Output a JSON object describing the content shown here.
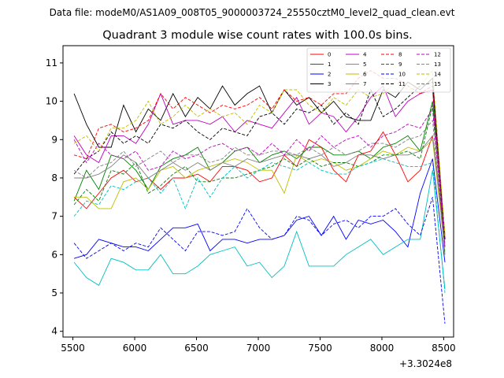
{
  "chart_data": {
    "type": "line",
    "suptitle": "Data file: modeM0/AS1A09_008T05_9000003724_25550cztM0_level2_quad_clean.evt",
    "title": "Quadrant 3 module wise count rates with 100.0s bins.",
    "xlabel": "",
    "ylabel": "",
    "x_offset_label": "+3.3024e8",
    "xlim": [
      5420,
      8580
    ],
    "ylim": [
      3.85,
      11.45
    ],
    "xticks": [
      5500,
      6000,
      6500,
      7000,
      7500,
      8000,
      8500
    ],
    "yticks": [
      4,
      5,
      6,
      7,
      8,
      9,
      10,
      11
    ],
    "x": [
      5510,
      5610,
      5710,
      5810,
      5910,
      6010,
      6110,
      6210,
      6310,
      6410,
      6510,
      6610,
      6710,
      6810,
      6910,
      7010,
      7110,
      7210,
      7310,
      7410,
      7510,
      7610,
      7710,
      7810,
      7910,
      8010,
      8110,
      8210,
      8310,
      8410,
      8510
    ],
    "legend_loc": "upper right",
    "series": [
      {
        "name": "0",
        "color": "#ff0000",
        "dash": "solid",
        "values": [
          7.5,
          7.2,
          7.6,
          8.0,
          8.2,
          7.9,
          8.0,
          7.7,
          8.0,
          8.0,
          8.1,
          7.9,
          8.3,
          8.3,
          8.2,
          7.9,
          8.0,
          8.6,
          8.3,
          9.0,
          8.8,
          8.2,
          7.9,
          8.6,
          8.7,
          9.2,
          8.6,
          7.9,
          8.2,
          9.1,
          6.4
        ]
      },
      {
        "name": "1",
        "color": "#008000",
        "dash": "solid",
        "values": [
          7.4,
          8.2,
          7.7,
          8.6,
          8.5,
          8.2,
          7.7,
          8.3,
          8.5,
          8.6,
          8.8,
          8.2,
          8.4,
          8.7,
          8.8,
          8.4,
          8.6,
          8.7,
          8.5,
          8.8,
          8.8,
          8.6,
          8.6,
          8.7,
          8.5,
          8.8,
          8.9,
          9.1,
          8.7,
          10.0,
          6.5
        ]
      },
      {
        "name": "2",
        "color": "#0000ff",
        "dash": "solid",
        "values": [
          5.9,
          6.0,
          6.4,
          6.3,
          6.2,
          6.2,
          6.1,
          6.4,
          6.7,
          6.7,
          6.8,
          6.1,
          6.4,
          6.4,
          6.3,
          6.4,
          6.4,
          6.5,
          6.9,
          7.0,
          6.5,
          7.0,
          6.4,
          6.9,
          6.8,
          6.9,
          6.6,
          6.2,
          7.6,
          8.5,
          5.8
        ]
      },
      {
        "name": "3",
        "color": "#000000",
        "dash": "solid",
        "values": [
          10.2,
          9.4,
          8.8,
          8.8,
          9.9,
          9.2,
          9.8,
          9.5,
          10.2,
          9.6,
          10.1,
          9.8,
          10.4,
          9.9,
          10.2,
          10.4,
          9.7,
          10.3,
          9.9,
          10.1,
          9.7,
          10.0,
          9.6,
          9.5,
          9.5,
          10.3,
          10.1,
          10.5,
          10.3,
          10.6,
          6.4
        ]
      },
      {
        "name": "4",
        "color": "#bf00bf",
        "dash": "solid",
        "values": [
          9.1,
          8.6,
          8.4,
          9.1,
          9.1,
          8.9,
          9.4,
          10.2,
          9.4,
          9.5,
          9.5,
          9.4,
          9.6,
          9.2,
          9.5,
          9.4,
          9.3,
          9.7,
          10.1,
          9.4,
          9.7,
          9.6,
          9.2,
          9.6,
          10.1,
          10.4,
          9.6,
          10.0,
          10.2,
          10.3,
          6.2
        ]
      },
      {
        "name": "5",
        "color": "#00bfbf",
        "dash": "solid",
        "values": [
          5.8,
          5.4,
          5.2,
          5.9,
          5.8,
          5.6,
          5.6,
          6.0,
          5.5,
          5.5,
          5.7,
          6.0,
          6.1,
          6.2,
          5.7,
          5.8,
          5.4,
          5.7,
          6.6,
          5.7,
          5.7,
          5.7,
          6.0,
          6.2,
          6.4,
          6.0,
          6.2,
          6.4,
          6.4,
          8.2,
          5.1
        ]
      },
      {
        "name": "6",
        "color": "#bfbf00",
        "dash": "solid",
        "values": [
          7.5,
          7.5,
          7.2,
          7.2,
          7.9,
          8.0,
          7.7,
          8.2,
          8.3,
          8.0,
          8.2,
          8.3,
          8.4,
          8.5,
          8.4,
          8.2,
          8.2,
          7.6,
          8.6,
          8.4,
          8.5,
          8.4,
          8.2,
          8.3,
          8.5,
          8.7,
          8.6,
          8.8,
          8.7,
          9.0,
          6.1
        ]
      },
      {
        "name": "7",
        "color": "#808080",
        "dash": "solid",
        "values": [
          8.0,
          8.0,
          8.1,
          8.3,
          8.6,
          8.4,
          8.0,
          8.2,
          8.4,
          8.2,
          8.4,
          8.2,
          8.4,
          8.3,
          8.5,
          8.4,
          8.5,
          8.6,
          8.6,
          8.5,
          8.6,
          8.3,
          8.4,
          8.6,
          8.6,
          8.5,
          8.6,
          8.6,
          8.7,
          9.1,
          6.3
        ]
      },
      {
        "name": "8",
        "color": "#ff0000",
        "dash": "dashed",
        "values": [
          8.6,
          8.5,
          9.3,
          9.4,
          9.2,
          9.3,
          9.5,
          10.2,
          9.8,
          10.1,
          9.9,
          9.7,
          9.9,
          9.8,
          9.9,
          10.1,
          9.8,
          10.3,
          10.0,
          10.1,
          9.9,
          10.2,
          10.2,
          10.6,
          10.8,
          10.6,
          10.6,
          10.4,
          10.2,
          10.4,
          6.5
        ]
      },
      {
        "name": "9",
        "color": "#008000",
        "dash": "dashed",
        "values": [
          7.3,
          7.7,
          7.4,
          8.2,
          8.1,
          8.4,
          7.6,
          7.8,
          8.1,
          8.3,
          7.9,
          7.9,
          8.0,
          8.0,
          8.1,
          8.2,
          8.3,
          8.5,
          8.3,
          8.5,
          8.3,
          8.4,
          8.4,
          8.3,
          8.4,
          8.6,
          8.6,
          8.7,
          8.5,
          9.9,
          6.0
        ]
      },
      {
        "name": "10",
        "color": "#0000ff",
        "dash": "dashed",
        "values": [
          6.3,
          5.9,
          6.1,
          6.3,
          6.1,
          6.3,
          6.2,
          6.7,
          6.4,
          6.1,
          6.6,
          6.6,
          6.5,
          6.6,
          7.2,
          6.7,
          6.4,
          6.5,
          7.0,
          6.9,
          6.5,
          6.8,
          6.9,
          6.7,
          7.0,
          7.0,
          7.2,
          6.8,
          6.5,
          7.5,
          4.2
        ]
      },
      {
        "name": "11",
        "color": "#000000",
        "dash": "dashed",
        "values": [
          8.1,
          8.5,
          8.7,
          9.2,
          8.9,
          9.1,
          8.9,
          9.4,
          9.3,
          9.5,
          9.2,
          9.0,
          9.3,
          9.2,
          9.1,
          9.6,
          9.7,
          9.4,
          9.8,
          9.7,
          9.9,
          9.4,
          9.7,
          9.4,
          10.3,
          9.6,
          9.8,
          10.1,
          10.4,
          10.5,
          6.4
        ]
      },
      {
        "name": "12",
        "color": "#bf00bf",
        "dash": "dashed",
        "values": [
          9.0,
          8.4,
          8.9,
          8.6,
          8.5,
          8.7,
          8.2,
          8.3,
          8.7,
          8.5,
          8.6,
          8.8,
          8.9,
          8.7,
          8.8,
          8.6,
          8.9,
          8.6,
          9.0,
          8.7,
          9.1,
          8.8,
          9.0,
          9.1,
          8.8,
          9.1,
          9.2,
          9.4,
          9.3,
          9.8,
          6.2
        ]
      },
      {
        "name": "13",
        "color": "#00bfbf",
        "dash": "dashed",
        "values": [
          7.0,
          7.4,
          7.3,
          7.8,
          7.7,
          7.9,
          8.0,
          7.6,
          8.0,
          7.2,
          8.0,
          7.5,
          8.0,
          8.3,
          8.0,
          8.2,
          8.4,
          8.3,
          8.2,
          8.4,
          8.2,
          8.1,
          8.1,
          8.3,
          8.4,
          8.5,
          8.4,
          8.3,
          8.3,
          8.4,
          5.0
        ]
      },
      {
        "name": "14",
        "color": "#bfbf00",
        "dash": "dashed",
        "values": [
          8.9,
          9.1,
          8.7,
          9.3,
          9.3,
          9.5,
          10.0,
          9.4,
          9.6,
          9.9,
          9.6,
          9.8,
          9.6,
          9.7,
          9.4,
          9.9,
          9.7,
          10.3,
          10.3,
          9.9,
          9.7,
          10.1,
          9.9,
          10.3,
          10.1,
          10.2,
          10.5,
          10.3,
          10.4,
          10.8,
          6.5
        ]
      },
      {
        "name": "15",
        "color": "#808080",
        "dash": "dashed",
        "values": [
          8.2,
          8.0,
          8.3,
          8.4,
          8.7,
          8.3,
          8.5,
          8.7,
          8.4,
          8.6,
          8.6,
          8.4,
          8.5,
          8.8,
          8.6,
          8.6,
          8.7,
          8.7,
          8.6,
          8.8,
          8.6,
          8.8,
          8.6,
          8.7,
          8.9,
          8.9,
          8.8,
          9.0,
          9.1,
          9.5,
          6.0
        ]
      }
    ]
  }
}
